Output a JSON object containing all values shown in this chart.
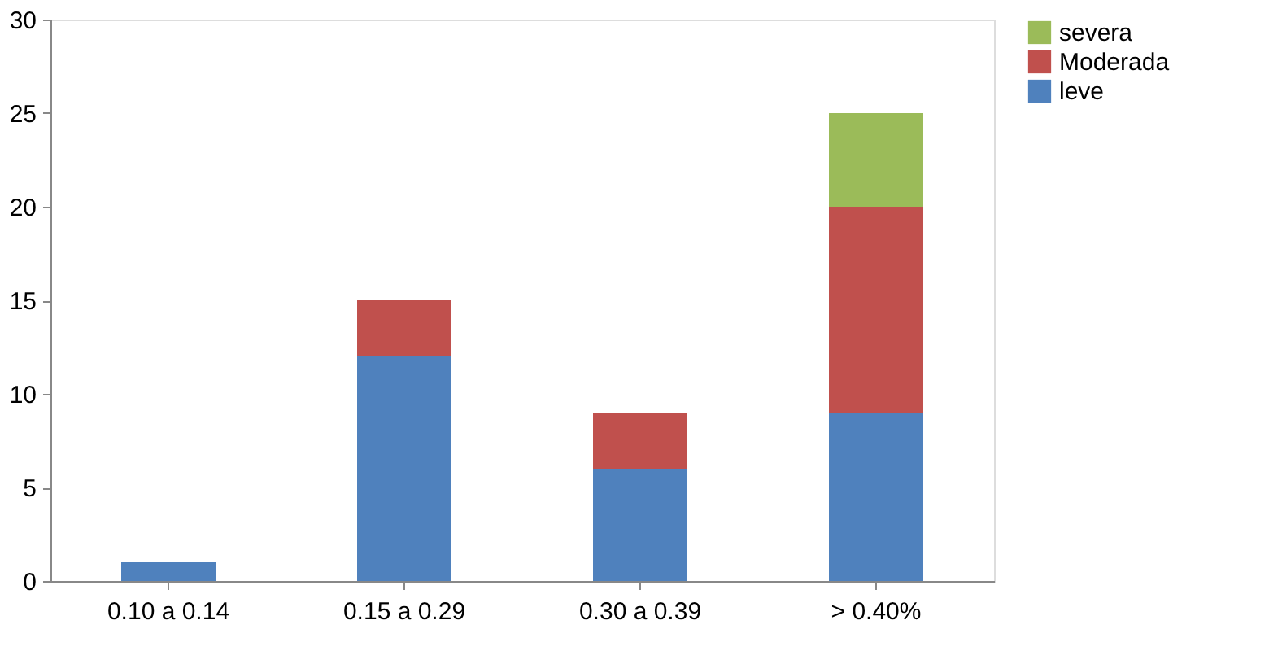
{
  "chart_data": {
    "type": "bar",
    "stacked": true,
    "categories": [
      "0.10 a 0.14",
      "0.15 a 0.29",
      "0.30 a 0.39",
      "> 0.40%"
    ],
    "series": [
      {
        "name": "leve",
        "color": "#4f81bd",
        "values": [
          1,
          12,
          6,
          9
        ]
      },
      {
        "name": "Moderada",
        "color": "#c0504d",
        "values": [
          null,
          3,
          3,
          11
        ]
      },
      {
        "name": "severa",
        "color": "#9bbb59",
        "values": [
          null,
          null,
          null,
          5
        ]
      }
    ],
    "ylim": [
      0,
      30
    ],
    "yticks": [
      0,
      5,
      10,
      15,
      20,
      25,
      30
    ],
    "grid": false,
    "legend": "right"
  }
}
